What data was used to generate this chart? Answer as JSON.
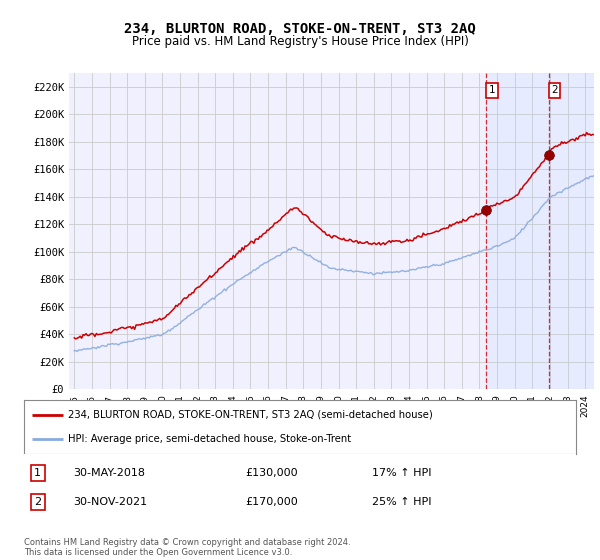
{
  "title": "234, BLURTON ROAD, STOKE-ON-TRENT, ST3 2AQ",
  "subtitle": "Price paid vs. HM Land Registry's House Price Index (HPI)",
  "ylabel_ticks": [
    "£0",
    "£20K",
    "£40K",
    "£60K",
    "£80K",
    "£100K",
    "£120K",
    "£140K",
    "£160K",
    "£180K",
    "£200K",
    "£220K"
  ],
  "ytick_vals": [
    0,
    20000,
    40000,
    60000,
    80000,
    100000,
    120000,
    140000,
    160000,
    180000,
    200000,
    220000
  ],
  "ylim": [
    0,
    230000
  ],
  "red_line_color": "#cc0000",
  "blue_line_color": "#88aadd",
  "grid_color": "#cccccc",
  "background_color": "#ffffff",
  "plot_bg_color": "#f0f0ff",
  "legend_label_red": "234, BLURTON ROAD, STOKE-ON-TRENT, ST3 2AQ (semi-detached house)",
  "legend_label_blue": "HPI: Average price, semi-detached house, Stoke-on-Trent",
  "annotation1_box": "1",
  "annotation1_date": "30-MAY-2018",
  "annotation1_price": "£130,000",
  "annotation1_hpi": "17% ↑ HPI",
  "annotation2_box": "2",
  "annotation2_date": "30-NOV-2021",
  "annotation2_price": "£170,000",
  "annotation2_hpi": "25% ↑ HPI",
  "footer": "Contains HM Land Registry data © Crown copyright and database right 2024.\nThis data is licensed under the Open Government Licence v3.0.",
  "vline1_x": 2018.37,
  "vline2_x": 2021.92,
  "marker1_x": 2018.37,
  "marker1_y": 130000,
  "marker2_x": 2021.92,
  "marker2_y": 170000,
  "xmin": 1994.7,
  "xmax": 2024.5
}
